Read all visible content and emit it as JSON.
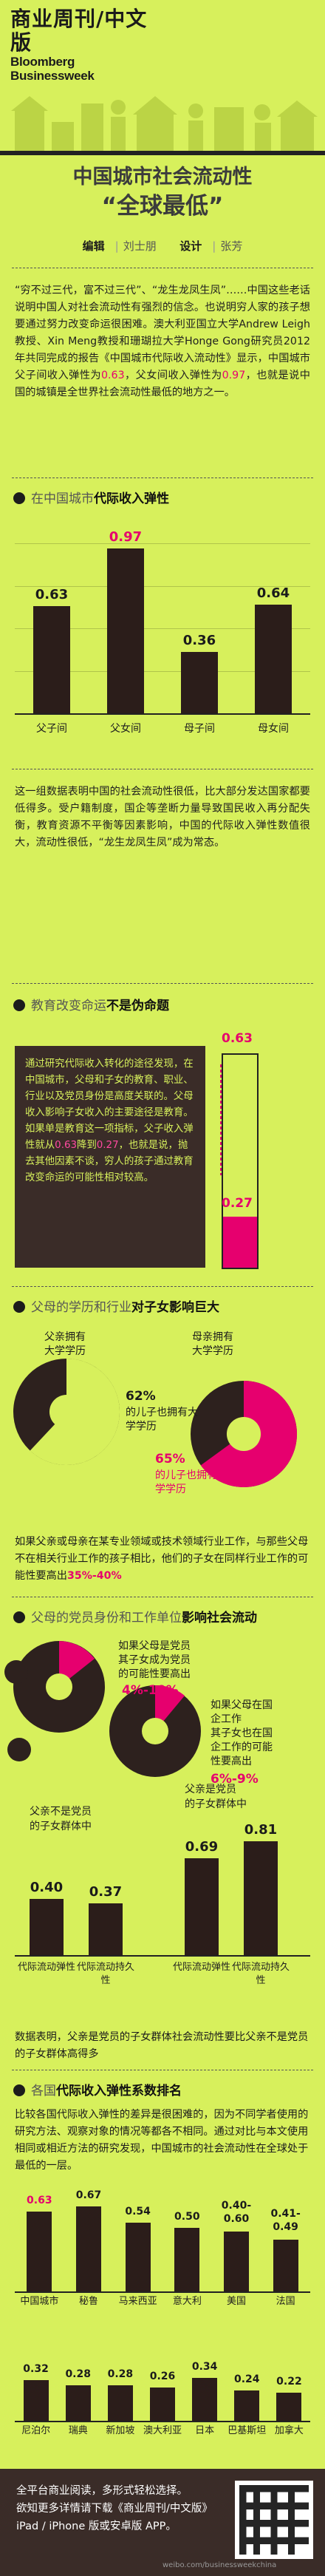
{
  "masthead": {
    "cn": "商业周刊/中文版",
    "en1": "Bloomberg",
    "en2": "Businessweek"
  },
  "title": {
    "line1": "中国城市社会流动性",
    "line2": "“全球最低”"
  },
  "credits": {
    "edit_label": "编辑",
    "edit_name": "刘士朋",
    "design_label": "设计",
    "design_name": "张芳"
  },
  "intro": {
    "text_a": "“穷不过三代，富不过三代”、“龙生龙凤生凤”……中国这些老话说明中国人对社会流动性有强烈的信念。也说明穷人家的孩子想要通过努力改变命运很困难。澳大利亚国立大学Andrew Leigh教授、Xin Meng教授和珊瑚拉大学Honge Gong研究员2012年共同完成的报告《中国城市代际收入流动性》显示，中国城市父子间收入弹性为",
    "v1": "0.63",
    "text_b": "，父女间收入弹性为",
    "v2": "0.97",
    "text_c": "，也就是说中国的城镇是全世界社会流动性最低的地方之一。"
  },
  "sec1": {
    "plain": "在中国城市",
    "bold": "代际收入弹性"
  },
  "chart1": {
    "type": "bar",
    "categories": [
      "父子间",
      "父女间",
      "母子间",
      "母女间"
    ],
    "values": [
      0.63,
      0.97,
      0.36,
      0.64
    ],
    "labels": [
      "0.63",
      "0.97",
      "0.36",
      "0.64"
    ],
    "ylim": [
      0,
      1.0
    ]
  },
  "para2": "这一组数据表明中国的社会流动性很低，比大部分发达国家都要低得多。受户籍制度，国企等垄断力量导致国民收入再分配失衡，教育资源不平衡等因素影响，中国的代际收入弹性数值很大，流动性很低，“龙生龙凤生凤”成为常态。",
  "sec2": {
    "plain": "教育改变命运",
    "bold": "不是伪命题"
  },
  "darkbox": {
    "text_a": "通过研究代际收入转化的途径发现，在中国城市，父母和子女的教育、职业、行业以及党员身份是高度关联的。父母收入影响子女收入的主要途径是教育。如果单是教育这一项指标，父子收入弹性就从",
    "v1": "0.63",
    "text_b": "降到",
    "v2": "0.27",
    "text_c": "，也就是说，抛去其他因素不谈，穷人的孩子通过教育改变命运的可能性相对较高。"
  },
  "thermo": {
    "top_value": 0.63,
    "bottom_value": 0.27,
    "top_label": "0.63",
    "bottom_label": "0.27"
  },
  "sec3": {
    "plain": "父母的学历和行业",
    "bold": "对子女影响巨大"
  },
  "pies_edu": {
    "left_caption": "父亲拥有\n大学学历",
    "right_caption": "母亲拥有\n大学学历",
    "left_pct": 62,
    "left_label_num": "62%",
    "left_label_text": "的儿子也拥有大学学历",
    "right_pct": 65,
    "right_label_num": "65%",
    "right_label_text": "的儿子也拥有大学学历"
  },
  "para3": {
    "text": "如果父亲或母亲在某专业领域或技术领域行业工作，与那些父母不在相关行业工作的孩子相比，他们的子女在同样行业工作的可能性要高出",
    "hl": "35%-40%"
  },
  "sec4": {
    "plain": "父母的党员身份和工作单位",
    "bold": "影响社会流动"
  },
  "pies_party": {
    "left_caption": "如果父母是党员\n其子女成为党员\n的可能性要高出",
    "left_hl": "4%-10%",
    "right_caption": "如果父母在国\n企工作\n其子女也在国\n企工作的可能\n性要高出",
    "right_hl": "6%-9%"
  },
  "chart2": {
    "type": "bar",
    "groups": [
      {
        "caption": "父亲不是党员\n的子女群体中",
        "categories": [
          "代际流动弹性",
          "代际流动持久性"
        ],
        "values": [
          0.4,
          0.37
        ],
        "labels": [
          "0.40",
          "0.37"
        ]
      },
      {
        "caption": "父亲是党员\n的子女群体中",
        "categories": [
          "代际流动弹性",
          "代际流动持久性"
        ],
        "values": [
          0.69,
          0.81
        ],
        "labels": [
          "0.69",
          "0.81"
        ]
      }
    ],
    "ylim": [
      0,
      1.0
    ]
  },
  "para4": "数据表明，父亲是党员的子女群体社会流动性要比父亲不是党员的子女群体高得多",
  "sec5": {
    "plain": "各国",
    "bold": "代际收入弹性系数排名"
  },
  "para5": "比较各国代际收入弹性的差异是很困难的，因为不同学者使用的研究方法、观察对象的情况等都各不相同。通过对比与本文使用相同或相近方法的研究发现，中国城市的社会流动性在全球处于最低的一层。",
  "chart3": {
    "type": "bar",
    "rows": [
      {
        "categories": [
          "中国城市",
          "秘鲁",
          "马来西亚",
          "意大利",
          "美国",
          "法国"
        ],
        "values": [
          0.63,
          0.67,
          0.54,
          0.5,
          0.47,
          0.41
        ],
        "labels": [
          "0.63",
          "0.67",
          "0.54",
          "0.50",
          "0.40-0.60",
          "0.41-0.49"
        ]
      },
      {
        "categories": [
          "尼泊尔",
          "瑞典",
          "新加坡",
          "澳大利亚",
          "日本",
          "巴基斯坦",
          "加拿大"
        ],
        "values": [
          0.32,
          0.28,
          0.28,
          0.26,
          0.34,
          0.24,
          0.22
        ],
        "labels": [
          "0.32",
          "0.28",
          "0.28",
          "0.26",
          "0.34",
          "0.24",
          "0.22"
        ]
      }
    ],
    "ylim": [
      0,
      0.7
    ]
  },
  "footer": {
    "line1": "全平台商业阅读，多形式轻松选择。",
    "line2": "欲知更多详情请下载《商业周刊/中文版》",
    "line3": "iPad / iPhone 版或安卓版 APP。"
  },
  "watermark": "weibo.com/businessweekchina"
}
